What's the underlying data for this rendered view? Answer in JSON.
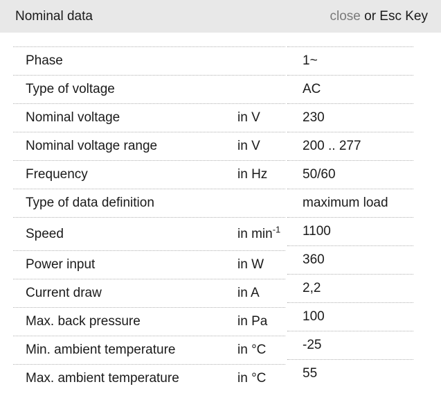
{
  "header": {
    "title": "Nominal data",
    "close_label": "close",
    "close_suffix": " or Esc Key"
  },
  "colors": {
    "header_bg": "#e8e8e8",
    "text": "#1a1a1a",
    "close_link": "#7a7a7a",
    "row_border": "#b0b0b0"
  },
  "table": {
    "rows": [
      {
        "label": "Phase",
        "unit": "",
        "unit_sup": "",
        "value": "1~"
      },
      {
        "label": "Type of voltage",
        "unit": "",
        "unit_sup": "",
        "value": "AC"
      },
      {
        "label": "Nominal voltage",
        "unit": "in V",
        "unit_sup": "",
        "value": "230"
      },
      {
        "label": "Nominal voltage range",
        "unit": "in V",
        "unit_sup": "",
        "value": "200 .. 277"
      },
      {
        "label": "Frequency",
        "unit": "in Hz",
        "unit_sup": "",
        "value": "50/60"
      },
      {
        "label": "Type of data definition",
        "unit": "",
        "unit_sup": "",
        "value": "maximum load"
      },
      {
        "label": "Speed",
        "unit": "in min",
        "unit_sup": "-1",
        "value": "1100"
      },
      {
        "label": "Power input",
        "unit": "in W",
        "unit_sup": "",
        "value": "360"
      },
      {
        "label": "Current draw",
        "unit": "in A",
        "unit_sup": "",
        "value": "2,2"
      },
      {
        "label": "Max. back pressure",
        "unit": "in Pa",
        "unit_sup": "",
        "value": "100"
      },
      {
        "label": "Min. ambient temperature",
        "unit": "in °C",
        "unit_sup": "",
        "value": "-25"
      },
      {
        "label": "Max. ambient temperature",
        "unit": "in °C",
        "unit_sup": "",
        "value": "55"
      }
    ]
  }
}
